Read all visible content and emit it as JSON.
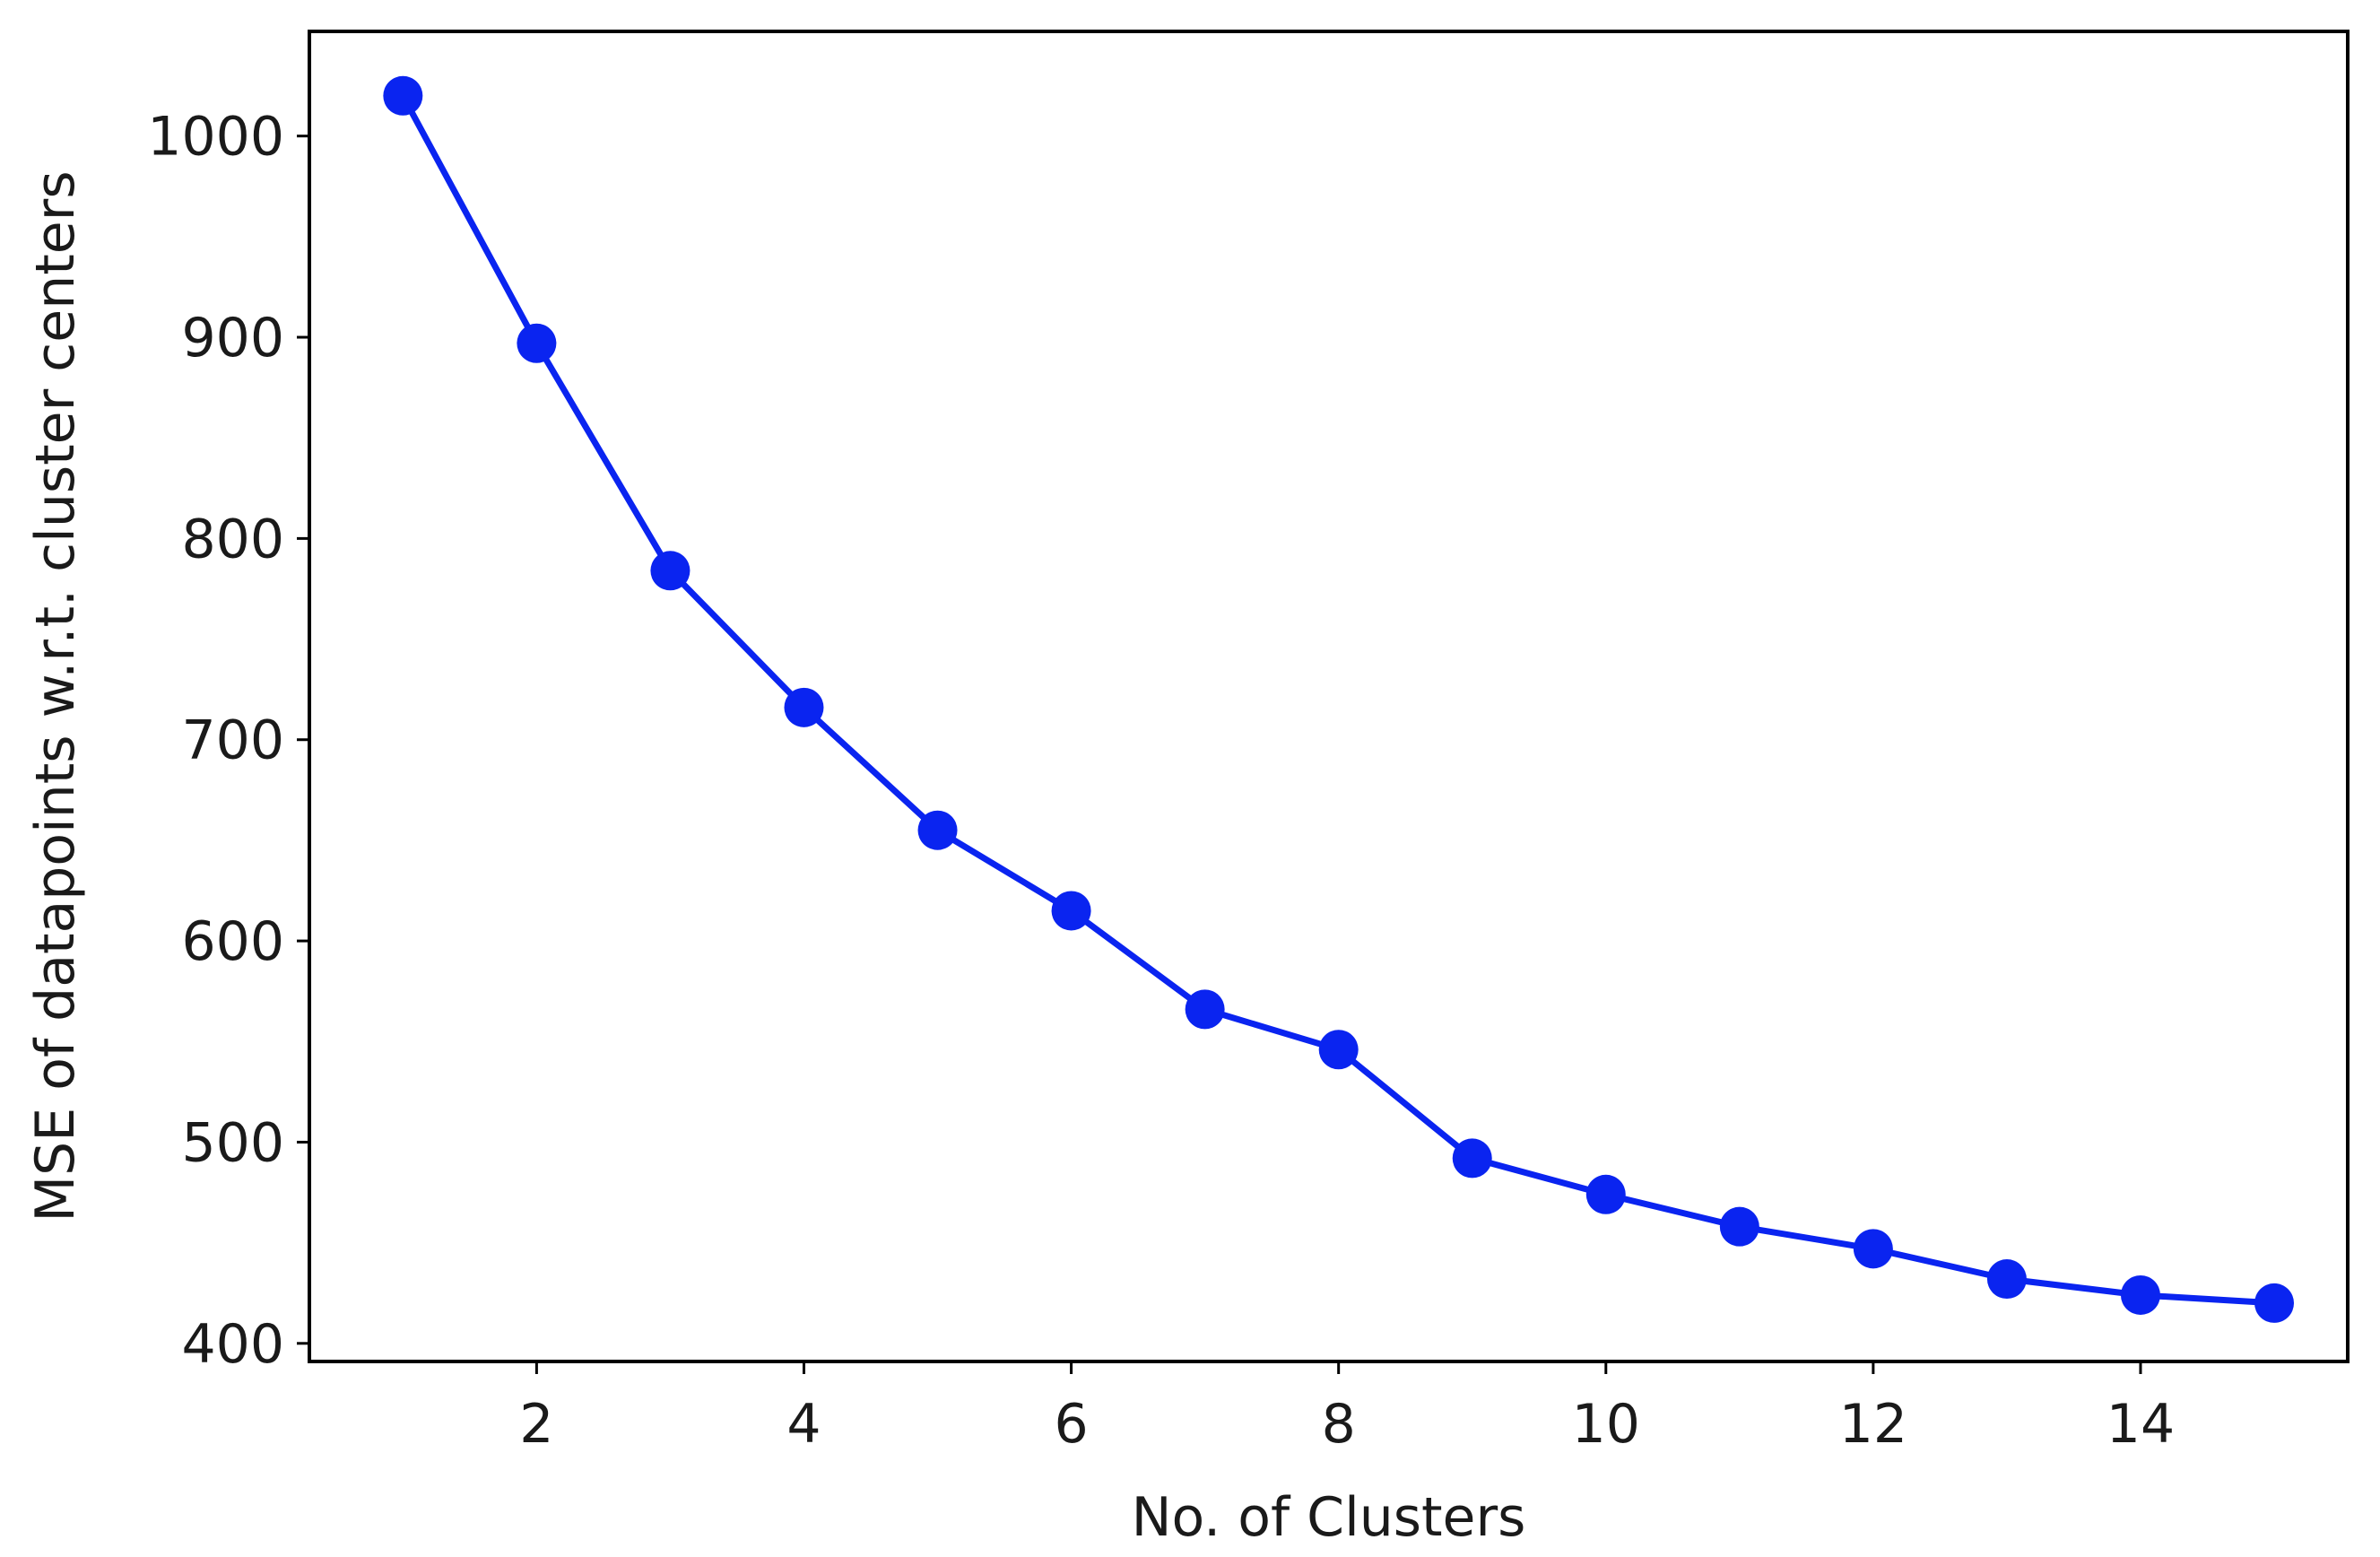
{
  "chart_data": {
    "type": "line",
    "title": "",
    "xlabel": "No. of Clusters",
    "ylabel": "MSE of datapoints w.r.t. cluster centers",
    "xlim": [
      0.3,
      15.55
    ],
    "ylim": [
      391,
      1052
    ],
    "xticks": [
      2,
      4,
      6,
      8,
      10,
      12,
      14
    ],
    "yticks": [
      400,
      500,
      600,
      700,
      800,
      900,
      1000
    ],
    "grid": false,
    "legend": "none",
    "series": [
      {
        "color": "#0a24f0",
        "marker": "circle",
        "x": [
          1,
          2,
          3,
          4,
          5,
          6,
          7,
          8,
          9,
          10,
          11,
          12,
          13,
          14,
          15
        ],
        "values": [
          1020,
          897,
          784,
          716,
          655,
          615,
          566,
          546,
          492,
          474,
          458,
          447,
          432,
          424,
          420
        ]
      }
    ]
  }
}
